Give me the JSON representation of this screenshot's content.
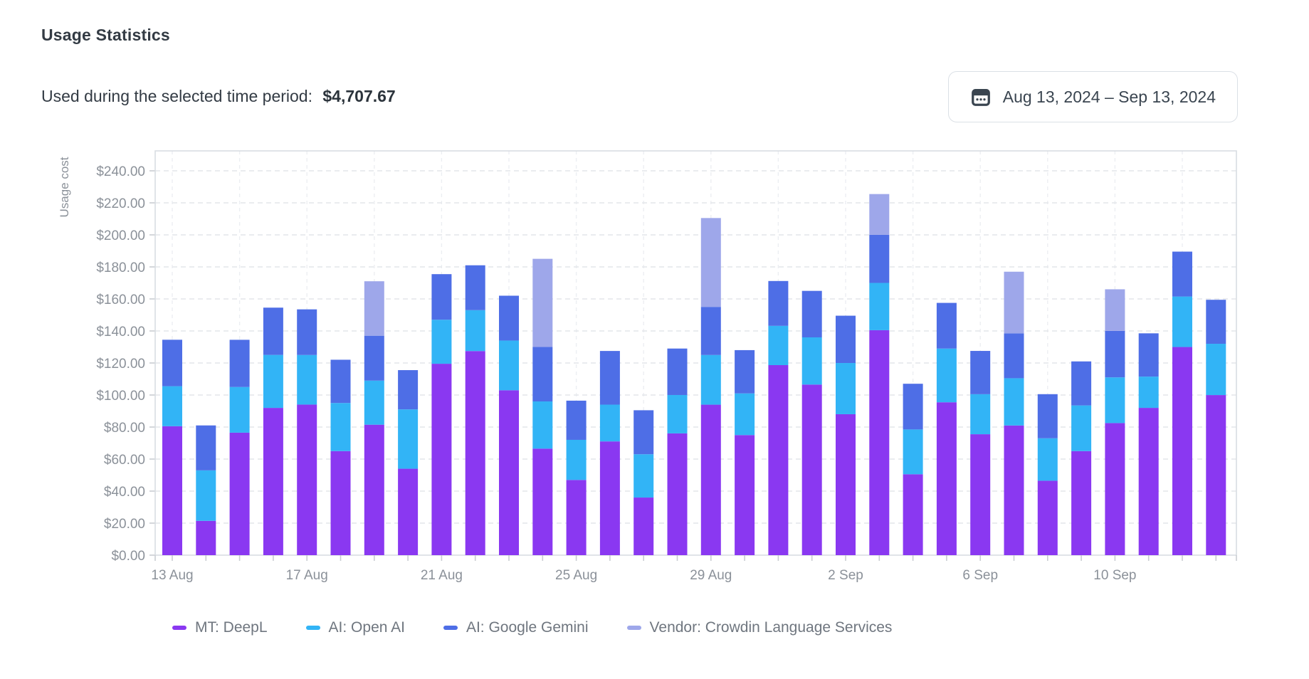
{
  "header": {
    "title": "Usage Statistics",
    "subtitle": "Used during the selected time period:",
    "total": "$4,707.67",
    "date_range": "Aug 13, 2024 – Sep 13, 2024"
  },
  "chart_data": {
    "type": "bar",
    "stacked": true,
    "ylabel": "Usage cost",
    "ylim": [
      0,
      250
    ],
    "grid": true,
    "legend_position": "bottom",
    "yticks": [
      "$0.00",
      "$20.00",
      "$40.00",
      "$60.00",
      "$80.00",
      "$100.00",
      "$120.00",
      "$140.00",
      "$160.00",
      "$180.00",
      "$200.00",
      "$220.00",
      "$240.00"
    ],
    "ytick_step_value": 20,
    "categories": [
      "13 Aug",
      "14 Aug",
      "15 Aug",
      "16 Aug",
      "17 Aug",
      "18 Aug",
      "19 Aug",
      "20 Aug",
      "21 Aug",
      "22 Aug",
      "23 Aug",
      "24 Aug",
      "25 Aug",
      "26 Aug",
      "27 Aug",
      "28 Aug",
      "29 Aug",
      "30 Aug",
      "31 Aug",
      "1 Sep",
      "2 Sep",
      "3 Sep",
      "4 Sep",
      "5 Sep",
      "6 Sep",
      "7 Sep",
      "8 Sep",
      "9 Sep",
      "10 Sep",
      "11 Sep",
      "12 Sep",
      "13 Sep"
    ],
    "xticks": [
      {
        "index": 0,
        "label": "13 Aug"
      },
      {
        "index": 4,
        "label": "17 Aug"
      },
      {
        "index": 8,
        "label": "21 Aug"
      },
      {
        "index": 12,
        "label": "25 Aug"
      },
      {
        "index": 16,
        "label": "29 Aug"
      },
      {
        "index": 20,
        "label": "2 Sep"
      },
      {
        "index": 24,
        "label": "6 Sep"
      },
      {
        "index": 28,
        "label": "10 Sep"
      }
    ],
    "series": [
      {
        "name": "MT: DeepL",
        "color": "#8a38f1",
        "values": [
          80.52,
          21.43,
          76.48,
          91.96,
          94.03,
          64.98,
          81.47,
          53.97,
          119.52,
          127.46,
          102.98,
          66.52,
          46.97,
          71.03,
          35.98,
          76.04,
          93.97,
          74.98,
          118.67,
          106.53,
          88.02,
          140.48,
          50.52,
          95.47,
          75.52,
          80.97,
          46.48,
          64.97,
          82.49,
          91.97,
          129.98,
          99.97
        ]
      },
      {
        "name": "AI: Open AI",
        "color": "#32b4f6",
        "values": [
          24.98,
          31.52,
          28.53,
          33.08,
          30.97,
          30.04,
          27.52,
          37.06,
          27.49,
          25.53,
          31.04,
          29.48,
          25.04,
          22.96,
          27.03,
          23.97,
          31.02,
          26.03,
          24.52,
          29.47,
          31.97,
          29.53,
          27.98,
          33.54,
          24.98,
          29.51,
          26.52,
          28.52,
          28.53,
          19.53,
          31.52,
          32.02
        ]
      },
      {
        "name": "AI: Google Gemini",
        "color": "#4e6ee6",
        "values": [
          29.01,
          28.06,
          29.47,
          29.52,
          28.49,
          27.01,
          28.04,
          24.51,
          28.47,
          28.02,
          27.99,
          34.03,
          24.47,
          33.52,
          27.48,
          29.01,
          30.04,
          27.02,
          28.01,
          29.03,
          29.54,
          30.02,
          28.53,
          28.52,
          27.04,
          28.03,
          27.53,
          27.49,
          29.02,
          27.02,
          28.04,
          27.48
        ]
      },
      {
        "name": "Vendor: Crowdin Language Services",
        "color": "#9ea7ea",
        "values": [
          0,
          0,
          0,
          0,
          0,
          0,
          34.01,
          0,
          0,
          0,
          0,
          55.02,
          0,
          0,
          0,
          0,
          55.49,
          0,
          0,
          0,
          0,
          25.46,
          0,
          0,
          0,
          38.49,
          0,
          0,
          25.98,
          0,
          0,
          0
        ]
      }
    ]
  }
}
